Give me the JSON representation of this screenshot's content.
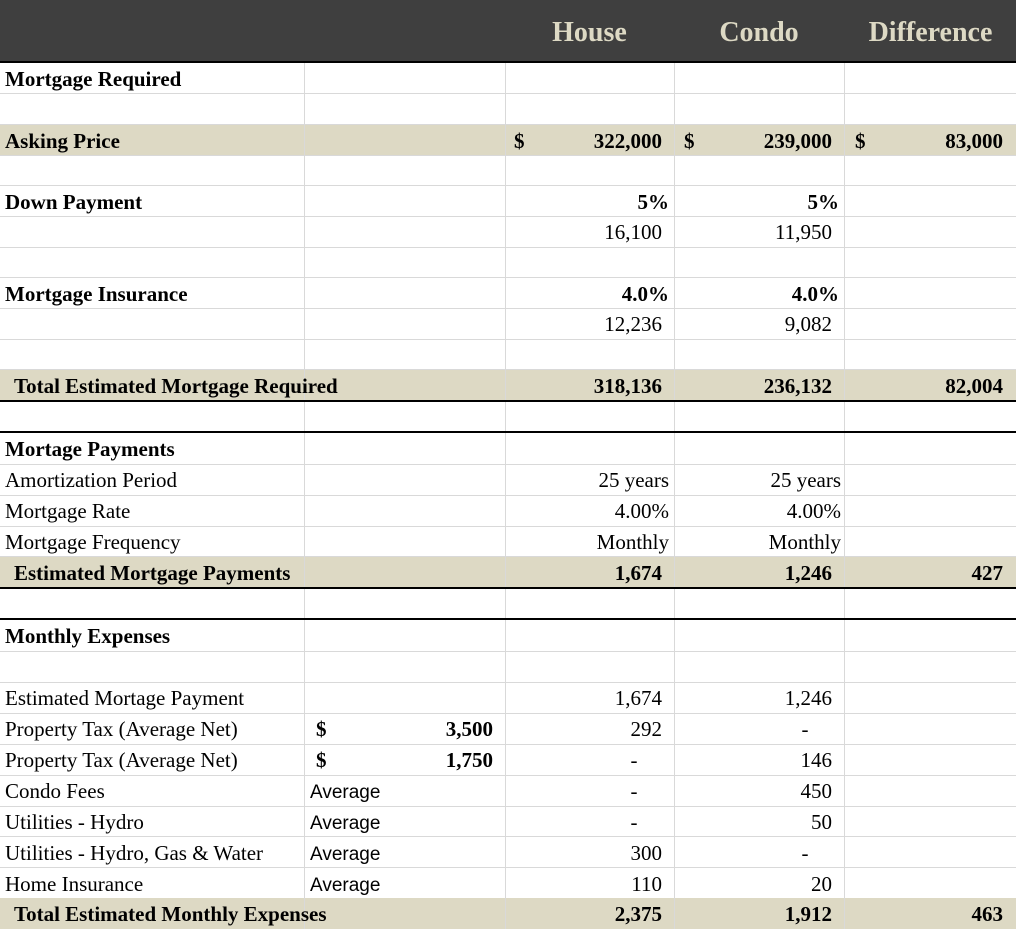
{
  "header": {
    "col_house": "House",
    "col_condo": "Condo",
    "col_difference": "Difference"
  },
  "mortgage_required": {
    "title": "Mortgage Required",
    "asking_price": {
      "label": "Asking Price",
      "currency": "$",
      "house": "322,000",
      "condo": "239,000",
      "difference": "83,000"
    },
    "down_payment": {
      "label": "Down Payment",
      "house_pct": "5%",
      "condo_pct": "5%",
      "house_amount": "16,100",
      "condo_amount": "11,950"
    },
    "mortgage_insurance": {
      "label": "Mortgage Insurance",
      "house_pct": "4.0%",
      "condo_pct": "4.0%",
      "house_amount": "12,236",
      "condo_amount": "9,082"
    },
    "total": {
      "label": "Total Estimated Mortgage Required",
      "house": "318,136",
      "condo": "236,132",
      "difference": "82,004"
    }
  },
  "mortgage_payments": {
    "title": "Mortage Payments",
    "rows": [
      {
        "label": "Amortization Period",
        "house": "25 years",
        "condo": "25 years"
      },
      {
        "label": "Mortgage Rate",
        "house": "4.00%",
        "condo": "4.00%"
      },
      {
        "label": "Mortgage Frequency",
        "house": "Monthly",
        "condo": "Monthly"
      }
    ],
    "total": {
      "label": "Estimated Mortgage Payments",
      "house": "1,674",
      "condo": "1,246",
      "difference": "427"
    }
  },
  "monthly_expenses": {
    "title": "Monthly Expenses",
    "rows": [
      {
        "label": "Estimated Mortage Payment",
        "note": "",
        "currency": "",
        "annual": "",
        "house": "1,674",
        "condo": "1,246"
      },
      {
        "label": "Property Tax (Average Net)",
        "note": "",
        "currency": "$",
        "annual": "3,500",
        "house": "292",
        "condo": "-"
      },
      {
        "label": "Property Tax (Average Net)",
        "note": "",
        "currency": "$",
        "annual": "1,750",
        "house": "-",
        "condo": "146"
      },
      {
        "label": "Condo Fees",
        "note": "Average",
        "currency": "",
        "annual": "",
        "house": "-",
        "condo": "450"
      },
      {
        "label": "Utilities - Hydro",
        "note": "Average",
        "currency": "",
        "annual": "",
        "house": "-",
        "condo": "50"
      },
      {
        "label": "Utilities - Hydro, Gas & Water",
        "note": "Average",
        "currency": "",
        "annual": "",
        "house": "300",
        "condo": "-"
      },
      {
        "label": "Home Insurance",
        "note": "Average",
        "currency": "",
        "annual": "",
        "house": "110",
        "condo": "20"
      }
    ],
    "total": {
      "label": "Total Estimated Monthly Expenses",
      "house": "2,375",
      "condo": "1,912",
      "difference": "463"
    }
  }
}
